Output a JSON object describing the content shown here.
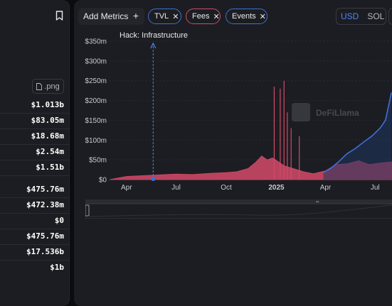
{
  "left_panel": {
    "export_label": ".png",
    "values": [
      "$1.013b",
      "$83.05m",
      "$18.68m",
      "$2.54m",
      "$1.51b",
      "$475.76m",
      "$472.38m",
      "$0",
      "$475.76m",
      "$17.536b",
      "$1b"
    ]
  },
  "toolbar": {
    "add_metrics_label": "Add Metrics",
    "chips": [
      {
        "label": "TVL",
        "color": "#3d6fd6"
      },
      {
        "label": "Fees",
        "color": "#d34a68"
      },
      {
        "label": "Events",
        "color": "#3d6fd6"
      }
    ],
    "currency_options": [
      "USD",
      "SOL"
    ],
    "currency_selected": "USD"
  },
  "watermark": "DeFiLlama",
  "chart_data": {
    "type": "area",
    "y_ticks": [
      "$0",
      "$50m",
      "$100m",
      "$150m",
      "$200m",
      "$250m",
      "$300m",
      "$350m"
    ],
    "x_ticks": [
      "Apr",
      "Jul",
      "Oct",
      "2025",
      "Apr",
      "Jul"
    ],
    "ylim": [
      0,
      350
    ],
    "grid": true,
    "event": {
      "label": "Hack: Infrastructure",
      "x": "2024-05-20"
    },
    "series": [
      {
        "name": "Fees",
        "color": "#d34a68",
        "points": [
          [
            "2024-03-01",
            0
          ],
          [
            "2024-04-01",
            8
          ],
          [
            "2024-05-01",
            10
          ],
          [
            "2024-06-01",
            12
          ],
          [
            "2024-07-01",
            14
          ],
          [
            "2024-08-01",
            13
          ],
          [
            "2024-09-01",
            16
          ],
          [
            "2024-10-01",
            18
          ],
          [
            "2024-10-20",
            20
          ],
          [
            "2024-11-10",
            28
          ],
          [
            "2024-11-25",
            45
          ],
          [
            "2024-12-05",
            60
          ],
          [
            "2024-12-15",
            50
          ],
          [
            "2024-12-25",
            55
          ],
          [
            "2025-01-05",
            45
          ],
          [
            "2025-01-15",
            35
          ],
          [
            "2025-02-01",
            28
          ],
          [
            "2025-02-20",
            20
          ],
          [
            "2025-03-10",
            15
          ],
          [
            "2025-04-01",
            22
          ],
          [
            "2025-04-20",
            38
          ],
          [
            "2025-05-10",
            40
          ],
          [
            "2025-06-01",
            48
          ],
          [
            "2025-06-20",
            38
          ],
          [
            "2025-07-10",
            42
          ],
          [
            "2025-07-31",
            45
          ]
        ],
        "spikes": [
          [
            "2025-01-08",
            230
          ],
          [
            "2025-01-15",
            250
          ],
          [
            "2025-01-21",
            170
          ],
          [
            "2024-12-28",
            235
          ],
          [
            "2025-01-28",
            130
          ],
          [
            "2025-02-12",
            110
          ]
        ]
      },
      {
        "name": "TVL",
        "color": "#3d6fd6",
        "points": [
          [
            "2025-03-28",
            18
          ],
          [
            "2025-04-10",
            28
          ],
          [
            "2025-04-25",
            45
          ],
          [
            "2025-05-10",
            65
          ],
          [
            "2025-05-25",
            78
          ],
          [
            "2025-06-10",
            95
          ],
          [
            "2025-06-25",
            110
          ],
          [
            "2025-07-10",
            130
          ],
          [
            "2025-07-20",
            150
          ],
          [
            "2025-07-31",
            220
          ]
        ]
      }
    ]
  }
}
